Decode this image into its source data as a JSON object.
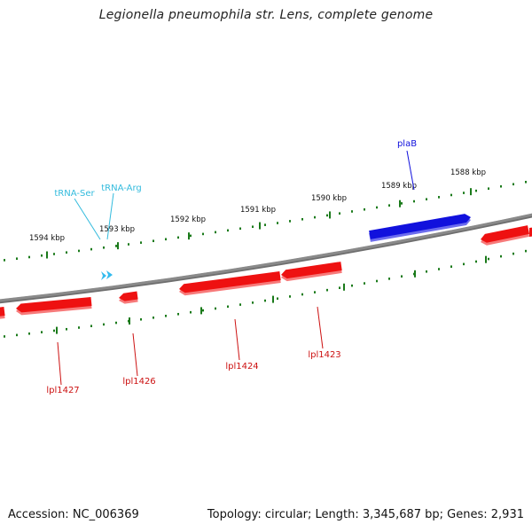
{
  "title": "Legionella pneumophila str. Lens, complete genome",
  "footer": {
    "accession": "Accession: NC_006369",
    "stats": "Topology: circular; Length: 3,345,687 bp; Genes: 2,931"
  },
  "colors": {
    "backbone": "#8a8a8a",
    "tick": "#1a7a1a",
    "gene_forward": "#1111dd",
    "gene_reverse": "#ee1111",
    "trna": "#33bbee",
    "label_text": "#111111"
  },
  "scale": {
    "unit": "kbp",
    "labels": [
      "1588 kbp",
      "1589 kbp",
      "1590 kbp",
      "1591 kbp",
      "1592 kbp",
      "1593 kbp",
      "1594 kbp"
    ]
  },
  "features": {
    "forward_genes": [
      {
        "label": "plaB"
      }
    ],
    "reverse_genes": [
      {
        "label": "lpl1423"
      },
      {
        "label": "lpl1424"
      },
      {
        "label": "lpl1426"
      },
      {
        "label": "lpl1427"
      }
    ],
    "trnas": [
      {
        "label": "tRNA-Ser"
      },
      {
        "label": "tRNA-Arg"
      }
    ]
  }
}
